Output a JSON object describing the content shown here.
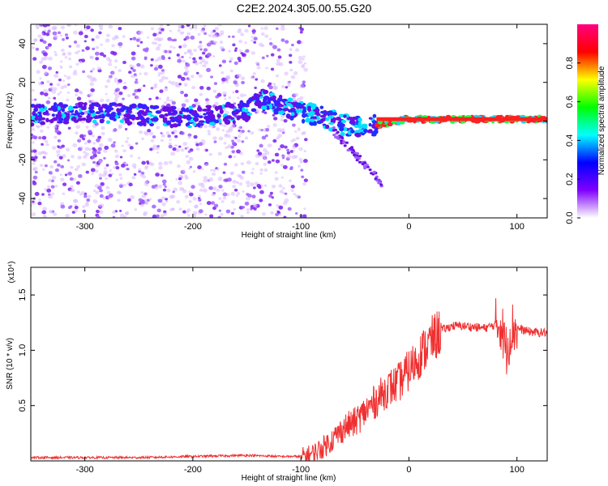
{
  "title": "C2E2.2024.305.00.55.G20",
  "chart_data": [
    {
      "type": "heatmap",
      "xlabel": "Height of straight line (km)",
      "ylabel": "Frequency (Hz)",
      "xlim": [
        -350,
        128
      ],
      "ylim": [
        -50,
        50
      ],
      "xticks": [
        -300,
        -200,
        -100,
        0,
        100
      ],
      "yticks": [
        -40,
        -20,
        0,
        20,
        40
      ],
      "colorbar": {
        "label": "Normalized spectral amplitude",
        "range": [
          0,
          1
        ],
        "ticks": [
          "0.0",
          "0.2",
          "0.4",
          "0.6",
          "0.8"
        ],
        "colors": [
          "#ffffff",
          "#8000ff",
          "#0000ff",
          "#00ffff",
          "#00ff00",
          "#ffff00",
          "#ff0000",
          "#ff0080"
        ]
      },
      "ridge": {
        "description_points_x": [
          -350,
          -300,
          -250,
          -200,
          -150,
          -140,
          -120,
          -100,
          -80,
          -60,
          -40,
          -20,
          0,
          50,
          100,
          128
        ],
        "description_points_y": [
          3,
          5,
          3,
          2,
          5,
          12,
          8,
          5,
          2,
          -2,
          -3,
          -1,
          1,
          1,
          1,
          1
        ]
      }
    },
    {
      "type": "line",
      "xlabel": "Height of straight line (km)",
      "ylabel": "SNR (10 * v/v)",
      "yscale_label": "(x10⁴)",
      "xlim": [
        -350,
        128
      ],
      "ylim": [
        0,
        1.75
      ],
      "xticks": [
        -300,
        -200,
        -100,
        0,
        100
      ],
      "yticks": [
        0.5,
        1.0,
        1.5
      ],
      "ytick_labels": [
        "0.5",
        "1.0",
        "1.5"
      ],
      "series": [
        {
          "color": "#f03030",
          "x": [
            -350,
            -300,
            -250,
            -200,
            -150,
            -120,
            -100,
            -90,
            -80,
            -70,
            -60,
            -50,
            -40,
            -30,
            -20,
            -10,
            0,
            10,
            20,
            30,
            40,
            50,
            60,
            70,
            80,
            85,
            90,
            95,
            100,
            110,
            120,
            128
          ],
          "y": [
            0.03,
            0.03,
            0.03,
            0.04,
            0.05,
            0.04,
            0.04,
            0.06,
            0.12,
            0.2,
            0.3,
            0.35,
            0.45,
            0.55,
            0.65,
            0.7,
            0.82,
            0.95,
            1.08,
            1.18,
            1.22,
            1.22,
            1.21,
            1.2,
            1.23,
            1.25,
            1.0,
            1.2,
            1.2,
            1.17,
            1.16,
            1.16
          ]
        }
      ]
    }
  ]
}
